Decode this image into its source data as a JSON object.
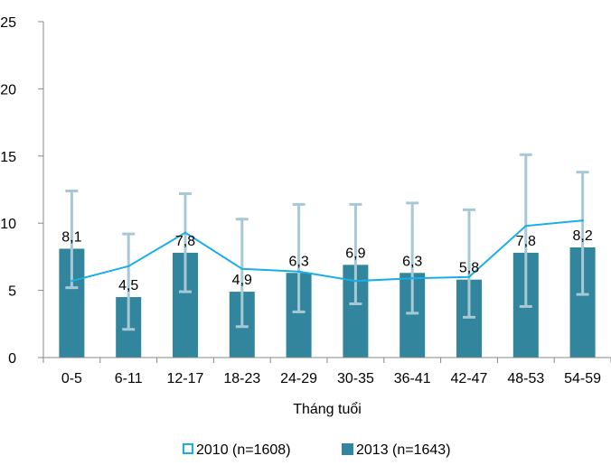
{
  "chart_data": {
    "type": "bar",
    "categories": [
      "0-5",
      "6-11",
      "12-17",
      "18-23",
      "24-29",
      "30-35",
      "36-41",
      "42-47",
      "48-53",
      "54-59"
    ],
    "xlabel": "Tháng tuổi",
    "ylabel": "",
    "ylim": [
      0,
      25
    ],
    "yticks": [
      0,
      5,
      10,
      15,
      20,
      25
    ],
    "grid": false,
    "legend": "bottom",
    "series": [
      {
        "name": "2010 (n=1608)",
        "type": "line",
        "color": "#1aaee8",
        "values": [
          5.7,
          6.8,
          9.3,
          6.6,
          6.4,
          5.7,
          5.9,
          6.0,
          9.8,
          10.2
        ]
      },
      {
        "name": "2013 (n=1643)",
        "type": "bar",
        "color": "#31859c",
        "values": [
          8.1,
          4.5,
          7.8,
          4.9,
          6.3,
          6.9,
          6.3,
          5.8,
          7.8,
          8.2
        ],
        "labels": [
          "8,1",
          "4,5",
          "7,8",
          "4,9",
          "6,3",
          "6,9",
          "6,3",
          "5,8",
          "7,8",
          "8,2"
        ],
        "error_low": [
          5.2,
          2.1,
          4.9,
          2.3,
          3.4,
          4.0,
          3.3,
          3.0,
          3.8,
          4.7
        ],
        "error_high": [
          12.4,
          9.2,
          12.2,
          10.3,
          11.4,
          11.4,
          11.5,
          11.0,
          15.1,
          13.8
        ]
      }
    ],
    "error_bar_color": "#a8c8d6"
  }
}
